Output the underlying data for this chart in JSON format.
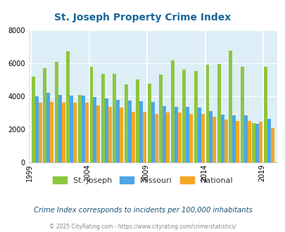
{
  "title": "St. Joseph Property Crime Index",
  "subtitle": "Crime Index corresponds to incidents per 100,000 inhabitants",
  "footer": "© 2025 CityRating.com - https://www.cityrating.com/crime-statistics/",
  "years": [
    1999,
    2000,
    2001,
    2002,
    2003,
    2004,
    2005,
    2006,
    2007,
    2008,
    2009,
    2010,
    2011,
    2012,
    2013,
    2014,
    2015,
    2016,
    2017,
    2018,
    2019
  ],
  "st_joseph": [
    5200,
    5700,
    6100,
    6700,
    4100,
    5800,
    5350,
    5350,
    4700,
    5000,
    4750,
    5300,
    6150,
    5600,
    5550,
    5900,
    5950,
    6750,
    5800,
    2400,
    5800
  ],
  "missouri": [
    4000,
    4200,
    4100,
    4050,
    4050,
    3950,
    3850,
    3800,
    3750,
    3700,
    3650,
    3400,
    3350,
    3350,
    3300,
    3100,
    2900,
    2850,
    2850,
    2350,
    2650
  ],
  "national": [
    3600,
    3650,
    3600,
    3600,
    3600,
    3450,
    3350,
    3300,
    3050,
    3050,
    2950,
    3000,
    3000,
    2950,
    2950,
    2750,
    2600,
    2500,
    2500,
    2450,
    2100
  ],
  "colors": {
    "st_joseph": "#8dc63f",
    "missouri": "#4da6e8",
    "national": "#f5a623",
    "background": "#ffffff",
    "plot_bg": "#ddeef6"
  },
  "ylim": [
    0,
    8000
  ],
  "yticks": [
    0,
    2000,
    4000,
    6000,
    8000
  ],
  "xtick_years": [
    1999,
    2004,
    2009,
    2014,
    2019
  ],
  "title_color": "#1a6699",
  "subtitle_color": "#1a5276",
  "footer_color": "#888888"
}
